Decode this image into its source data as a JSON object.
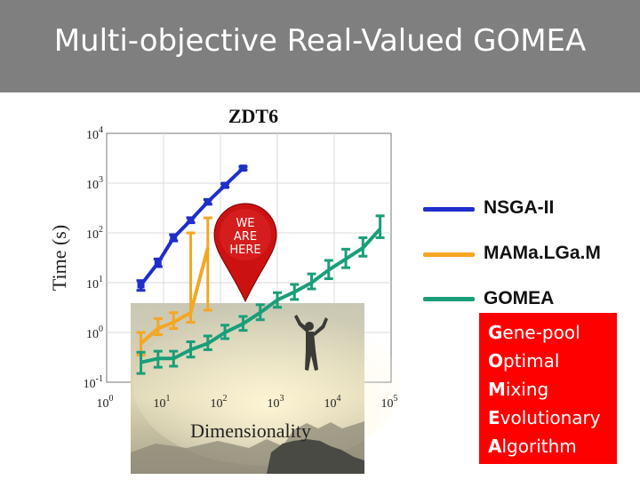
{
  "slide": {
    "title": "Multi-objective Real-Valued GOMEA"
  },
  "pin": {
    "line1": "WE",
    "line2": "ARE",
    "line3": "HERE"
  },
  "legend": [
    {
      "name": "NSGA-II",
      "color": "#1f2fcc"
    },
    {
      "name": "MAMa.LGa.M",
      "color": "#f5a623"
    },
    {
      "name": "GOMEA",
      "color": "#1a9e7a"
    }
  ],
  "acronym": [
    {
      "initial": "G",
      "rest": "ene-pool"
    },
    {
      "initial": "O",
      "rest": "ptimal"
    },
    {
      "initial": "M",
      "rest": "ixing"
    },
    {
      "initial": "E",
      "rest": "volutionary"
    },
    {
      "initial": "A",
      "rest": "lgorithm"
    }
  ],
  "chart_data": {
    "type": "line",
    "title": "ZDT6",
    "xlabel": "Dimensionality",
    "ylabel": "Time (s)",
    "xscale": "log",
    "yscale": "log",
    "xlim": [
      1,
      100000
    ],
    "ylim": [
      0.1,
      10000
    ],
    "xticks": [
      {
        "b": "10",
        "e": "0"
      },
      {
        "b": "10",
        "e": "1"
      },
      {
        "b": "10",
        "e": "2"
      },
      {
        "b": "10",
        "e": "3"
      },
      {
        "b": "10",
        "e": "4"
      },
      {
        "b": "10",
        "e": "5"
      }
    ],
    "yticks": [
      {
        "b": "10",
        "e": "-1"
      },
      {
        "b": "10",
        "e": "0"
      },
      {
        "b": "10",
        "e": "1"
      },
      {
        "b": "10",
        "e": "2"
      },
      {
        "b": "10",
        "e": "3"
      },
      {
        "b": "10",
        "e": "4"
      }
    ],
    "grid": true,
    "series": [
      {
        "name": "NSGA-II",
        "color": "#1f2fcc",
        "x": [
          4,
          8,
          15,
          30,
          60,
          120,
          250
        ],
        "y": [
          9,
          25,
          80,
          180,
          420,
          900,
          2000
        ],
        "err_low": [
          7,
          21,
          69,
          160,
          376,
          830,
          1850
        ],
        "err_high": [
          11,
          30,
          92,
          202,
          470,
          975,
          2150
        ]
      },
      {
        "name": "MAMa.LGa.M",
        "color": "#f5a623",
        "x": [
          4,
          8,
          15,
          30,
          60
        ],
        "y": [
          0.6,
          1.2,
          1.6,
          2.5,
          50
        ],
        "err_low": [
          0.35,
          0.9,
          1.2,
          1.6,
          2.8
        ],
        "err_high": [
          1.0,
          1.9,
          2.5,
          100,
          200
        ]
      },
      {
        "name": "GOMEA",
        "color": "#1a9e7a",
        "x": [
          4,
          8,
          15,
          30,
          60,
          120,
          250,
          500,
          1000,
          2000,
          4000,
          8000,
          16000,
          32000,
          64000
        ],
        "y": [
          0.25,
          0.3,
          0.3,
          0.45,
          0.6,
          1.0,
          1.5,
          2.5,
          4.5,
          6.5,
          10,
          18,
          30,
          50,
          120
        ],
        "err_low": [
          0.15,
          0.2,
          0.21,
          0.32,
          0.45,
          0.75,
          1.1,
          1.8,
          3.2,
          4.6,
          7.5,
          12,
          20,
          34,
          80
        ],
        "err_high": [
          0.4,
          0.42,
          0.42,
          0.65,
          0.85,
          1.4,
          2.1,
          3.6,
          6.3,
          9.2,
          15,
          28,
          47,
          80,
          220
        ]
      }
    ]
  }
}
